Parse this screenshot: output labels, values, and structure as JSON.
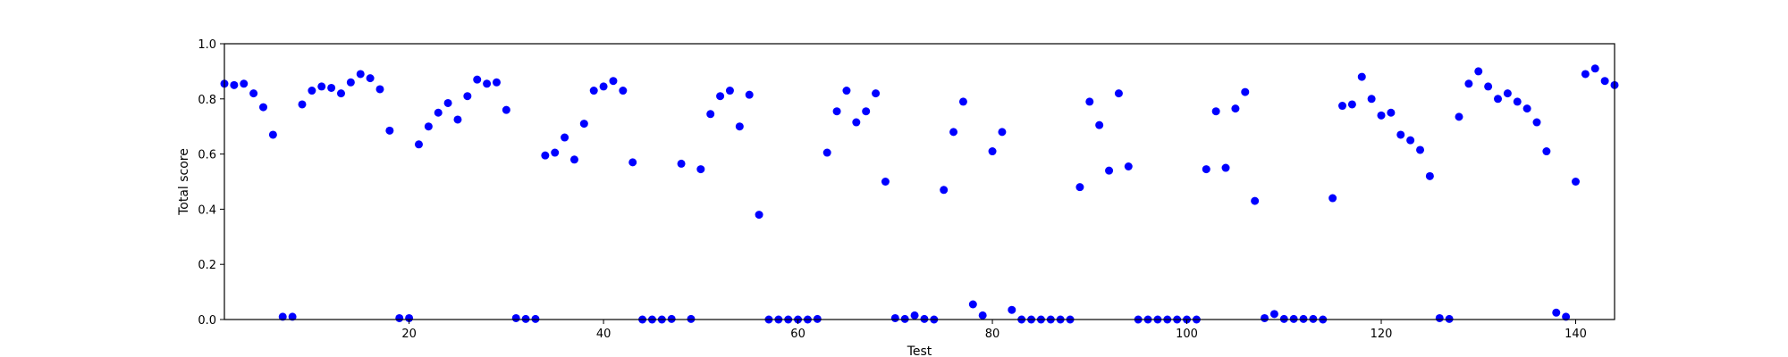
{
  "chart_data": {
    "type": "scatter",
    "title": "",
    "xlabel": "Test",
    "ylabel": "Total score",
    "xlim": [
      1,
      144
    ],
    "ylim": [
      0.0,
      1.0
    ],
    "x_ticks": [
      20,
      40,
      60,
      80,
      100,
      120,
      140
    ],
    "y_ticks": [
      0.0,
      0.2,
      0.4,
      0.6,
      0.8,
      1.0
    ],
    "x_tick_labels": [
      "20",
      "40",
      "60",
      "80",
      "100",
      "120",
      "140"
    ],
    "y_tick_labels": [
      "0.0",
      "0.2",
      "0.4",
      "0.6",
      "0.8",
      "1.0"
    ],
    "grid": false,
    "legend": false,
    "marker_color": "#0000ff",
    "series": [
      {
        "x": [
          1,
          2,
          3,
          4,
          5,
          6,
          7,
          8,
          9,
          10,
          11,
          12,
          13,
          14,
          15,
          16,
          17,
          18,
          19,
          20,
          21,
          22,
          23,
          24,
          25,
          26,
          27,
          28,
          29,
          30,
          31,
          32,
          33,
          34,
          35,
          36,
          37,
          38,
          39,
          40,
          41,
          42,
          43,
          44,
          45,
          46,
          47,
          48,
          49,
          50,
          51,
          52,
          53,
          54,
          55,
          56,
          57,
          58,
          59,
          60,
          61,
          62,
          63,
          64,
          65,
          66,
          67,
          68,
          69,
          70,
          71,
          72,
          73,
          74,
          75,
          76,
          77,
          78,
          79,
          80,
          81,
          82,
          83,
          84,
          85,
          86,
          87,
          88,
          89,
          90,
          91,
          92,
          93,
          94,
          95,
          96,
          97,
          98,
          99,
          100,
          101,
          102,
          103,
          104,
          105,
          106,
          107,
          108,
          109,
          110,
          111,
          112,
          113,
          114,
          115,
          116,
          117,
          118,
          119,
          120,
          121,
          122,
          123,
          124,
          125,
          126,
          127,
          128,
          129,
          130,
          131,
          132,
          133,
          134,
          135,
          136,
          137,
          138,
          139,
          140,
          141,
          142,
          143,
          144
        ],
        "y": [
          0.855,
          0.85,
          0.855,
          0.82,
          0.77,
          0.67,
          0.01,
          0.01,
          0.78,
          0.83,
          0.845,
          0.84,
          0.82,
          0.86,
          0.89,
          0.875,
          0.835,
          0.685,
          0.005,
          0.005,
          0.635,
          0.7,
          0.75,
          0.785,
          0.725,
          0.81,
          0.87,
          0.855,
          0.86,
          0.76,
          0.005,
          0.002,
          0.002,
          0.595,
          0.605,
          0.66,
          0.58,
          0.71,
          0.83,
          0.845,
          0.865,
          0.83,
          0.57,
          0.0,
          0.0,
          0.0,
          0.002,
          0.565,
          0.002,
          0.545,
          0.745,
          0.81,
          0.83,
          0.7,
          0.815,
          0.38,
          0.0,
          0.0,
          0.0,
          0.0,
          0.0,
          0.002,
          0.605,
          0.755,
          0.83,
          0.715,
          0.755,
          0.82,
          0.5,
          0.005,
          0.002,
          0.015,
          0.002,
          0.0,
          0.47,
          0.68,
          0.79,
          0.055,
          0.015,
          0.61,
          0.68,
          0.035,
          0.0,
          0.0,
          0.0,
          0.0,
          0.0,
          0.0,
          0.48,
          0.79,
          0.705,
          0.54,
          0.82,
          0.555,
          0.0,
          0.0,
          0.0,
          0.0,
          0.0,
          0.0,
          0.0,
          0.545,
          0.755,
          0.55,
          0.765,
          0.825,
          0.43,
          0.005,
          0.02,
          0.002,
          0.002,
          0.002,
          0.002,
          0.0,
          0.44,
          0.775,
          0.78,
          0.88,
          0.8,
          0.74,
          0.75,
          0.67,
          0.65,
          0.615,
          0.52,
          0.005,
          0.002,
          0.735,
          0.855,
          0.9,
          0.845,
          0.8,
          0.82,
          0.79,
          0.765,
          0.715,
          0.61,
          0.025,
          0.01,
          0.5,
          0.89,
          0.91,
          0.865,
          0.85
        ]
      }
    ]
  }
}
